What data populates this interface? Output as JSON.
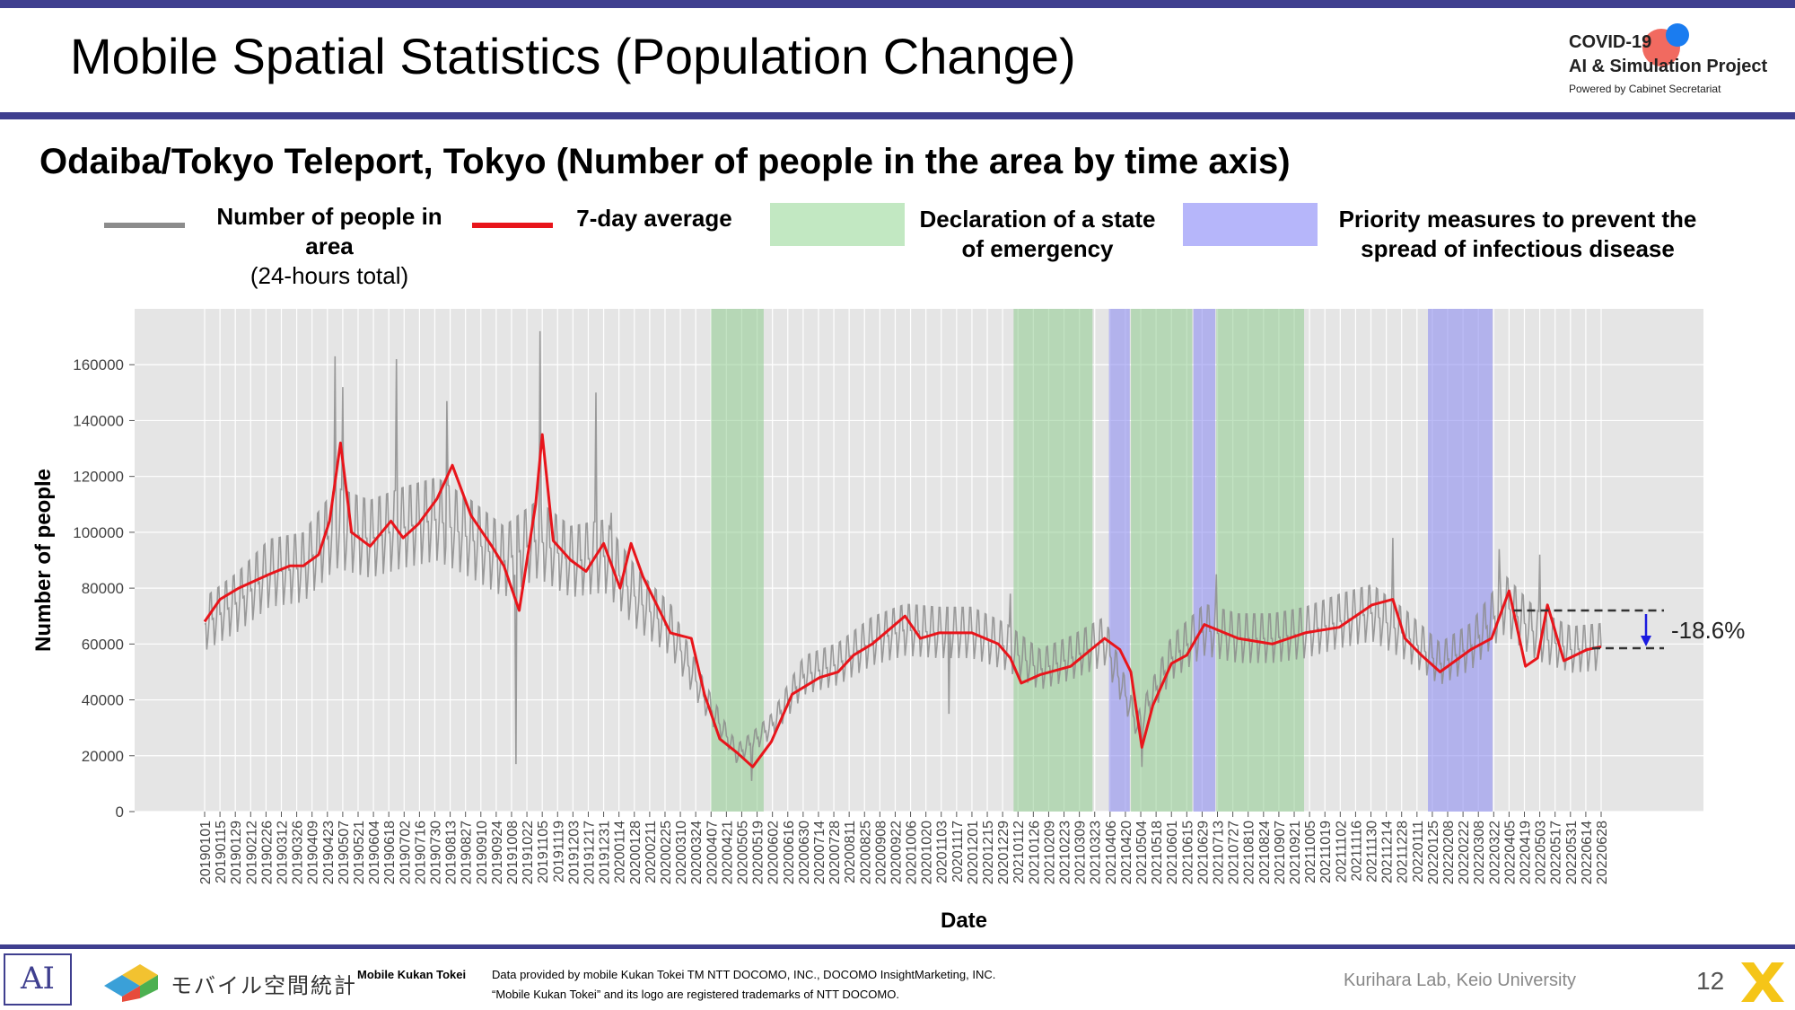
{
  "header": {
    "title": "Mobile Spatial Statistics (Population Change)",
    "logo_line1": "COVID-19",
    "logo_line2": "AI & Simulation Project",
    "logo_line3": "Powered by Cabinet Secretariat"
  },
  "subtitle": "Odaiba/Tokyo Teleport, Tokyo (Number of people in the area by time axis)",
  "legend": {
    "gray_label": "Number of people in area",
    "gray_sub": "(24-hours total)",
    "red_label": "7-day average",
    "green_label_1": "Declaration of a state",
    "green_label_2": "of emergency",
    "blue_label_1": "Priority measures to prevent the",
    "blue_label_2": "spread of infectious disease"
  },
  "colors": {
    "gray": "#8c8c8c",
    "red": "#e8151b",
    "green": "#8fcc8f",
    "blue": "#8f8ff0",
    "plot_bg": "#e5e5e5",
    "accent": "#3f3f8f"
  },
  "chart_data": {
    "type": "line",
    "xlabel": "Date",
    "ylabel": "Number of people",
    "ylim": [
      0,
      180000
    ],
    "yticks": [
      0,
      20000,
      40000,
      60000,
      80000,
      100000,
      120000,
      140000,
      160000
    ],
    "grid": true,
    "start_date": "20190101",
    "xticks": [
      "20190101",
      "20190115",
      "20190129",
      "20190212",
      "20190226",
      "20190312",
      "20190326",
      "20190409",
      "20190423",
      "20190507",
      "20190521",
      "20190604",
      "20190618",
      "20190702",
      "20190716",
      "20190730",
      "20190813",
      "20190827",
      "20190910",
      "20190924",
      "20191008",
      "20191022",
      "20191105",
      "20191119",
      "20191203",
      "20191217",
      "20191231",
      "20200114",
      "20200128",
      "20200211",
      "20200225",
      "20200310",
      "20200324",
      "20200407",
      "20200421",
      "20200505",
      "20200519",
      "20200602",
      "20200616",
      "20200630",
      "20200714",
      "20200728",
      "20200811",
      "20200825",
      "20200908",
      "20200922",
      "20201006",
      "20201020",
      "20201103",
      "20201117",
      "20201201",
      "20201215",
      "20201229",
      "20210112",
      "20210126",
      "20210209",
      "20210223",
      "20210309",
      "20210323",
      "20210406",
      "20210420",
      "20210504",
      "20210518",
      "20210601",
      "20210615",
      "20210629",
      "20210713",
      "20210727",
      "20210810",
      "20210824",
      "20210907",
      "20210921",
      "20211005",
      "20211019",
      "20211102",
      "20211116",
      "20211130",
      "20211214",
      "20211228",
      "20220111",
      "20220125",
      "20220208",
      "20220222",
      "20220308",
      "20220322",
      "20220405",
      "20220419",
      "20220503",
      "20220517",
      "20220531",
      "20220614",
      "20220628"
    ],
    "emergency_periods": [
      [
        "20200407",
        "20200525"
      ],
      [
        "20210108",
        "20210321"
      ],
      [
        "20210425",
        "20210620"
      ],
      [
        "20210712",
        "20210930"
      ]
    ],
    "priority_periods": [
      [
        "20210405",
        "20210424"
      ],
      [
        "20210621",
        "20210711"
      ],
      [
        "20220121",
        "20220321"
      ]
    ],
    "series": [
      {
        "name": "Number of people in area",
        "style": "daily",
        "points": [
          [
            "20190101",
            66000
          ],
          [
            "20190201",
            74000
          ],
          [
            "20190301",
            84000
          ],
          [
            "20190401",
            86000
          ],
          [
            "20190501",
            100000
          ],
          [
            "20190601",
            96000
          ],
          [
            "20190701",
            100000
          ],
          [
            "20190801",
            103000
          ],
          [
            "20190901",
            96000
          ],
          [
            "20191001",
            88000
          ],
          [
            "20191101",
            96000
          ],
          [
            "20191201",
            88000
          ],
          [
            "20200101",
            90000
          ],
          [
            "20200201",
            74000
          ],
          [
            "20200301",
            64000
          ],
          [
            "20200401",
            40000
          ],
          [
            "20200501",
            20000
          ],
          [
            "20200601",
            30000
          ],
          [
            "20200701",
            48000
          ],
          [
            "20200801",
            52000
          ],
          [
            "20200901",
            60000
          ],
          [
            "20201001",
            64000
          ],
          [
            "20201101",
            63000
          ],
          [
            "20201201",
            63000
          ],
          [
            "20210101",
            58000
          ],
          [
            "20210201",
            50000
          ],
          [
            "20210301",
            54000
          ],
          [
            "20210401",
            60000
          ],
          [
            "20210501",
            30000
          ],
          [
            "20210601",
            54000
          ],
          [
            "20210701",
            64000
          ],
          [
            "20210801",
            61000
          ],
          [
            "20210901",
            61000
          ],
          [
            "20211001",
            63000
          ],
          [
            "20211101",
            67000
          ],
          [
            "20211201",
            70000
          ],
          [
            "20220101",
            62000
          ],
          [
            "20220201",
            52000
          ],
          [
            "20220301",
            58000
          ],
          [
            "20220401",
            73000
          ],
          [
            "20220501",
            62000
          ],
          [
            "20220601",
            57000
          ],
          [
            "20220628",
            58000
          ]
        ],
        "spikes": [
          [
            "20190430",
            163000
          ],
          [
            "20190507",
            152000
          ],
          [
            "20190625",
            162000
          ],
          [
            "20190810",
            147000
          ],
          [
            "20191012",
            17000
          ],
          [
            "20191103",
            172000
          ],
          [
            "20191224",
            150000
          ],
          [
            "20200107",
            107000
          ],
          [
            "20200514",
            11000
          ],
          [
            "20201110",
            35000
          ],
          [
            "20210105",
            78000
          ],
          [
            "20210505",
            16000
          ],
          [
            "20210712",
            85000
          ],
          [
            "20211220",
            98000
          ],
          [
            "20220327",
            94000
          ],
          [
            "20220503",
            92000
          ]
        ]
      },
      {
        "name": "7-day average",
        "style": "smooth",
        "points": [
          [
            "20190101",
            68000
          ],
          [
            "20190115",
            76000
          ],
          [
            "20190201",
            80000
          ],
          [
            "20190301",
            85000
          ],
          [
            "20190320",
            88000
          ],
          [
            "20190401",
            88000
          ],
          [
            "20190415",
            92000
          ],
          [
            "20190425",
            104000
          ],
          [
            "20190505",
            132000
          ],
          [
            "20190515",
            100000
          ],
          [
            "20190601",
            95000
          ],
          [
            "20190620",
            104000
          ],
          [
            "20190701",
            98000
          ],
          [
            "20190715",
            103000
          ],
          [
            "20190801",
            112000
          ],
          [
            "20190815",
            124000
          ],
          [
            "20190901",
            106000
          ],
          [
            "20190920",
            95000
          ],
          [
            "20191001",
            88000
          ],
          [
            "20191015",
            72000
          ],
          [
            "20191030",
            110000
          ],
          [
            "20191105",
            135000
          ],
          [
            "20191115",
            97000
          ],
          [
            "20191201",
            90000
          ],
          [
            "20191215",
            86000
          ],
          [
            "20191231",
            96000
          ],
          [
            "20200115",
            80000
          ],
          [
            "20200125",
            96000
          ],
          [
            "20200205",
            84000
          ],
          [
            "20200301",
            64000
          ],
          [
            "20200320",
            62000
          ],
          [
            "20200401",
            42000
          ],
          [
            "20200415",
            26000
          ],
          [
            "20200501",
            21000
          ],
          [
            "20200515",
            16000
          ],
          [
            "20200601",
            25000
          ],
          [
            "20200620",
            42000
          ],
          [
            "20200715",
            48000
          ],
          [
            "20200801",
            50000
          ],
          [
            "20200815",
            56000
          ],
          [
            "20200901",
            60000
          ],
          [
            "20201001",
            70000
          ],
          [
            "20201015",
            62000
          ],
          [
            "20201101",
            64000
          ],
          [
            "20201201",
            64000
          ],
          [
            "20201225",
            60000
          ],
          [
            "20210105",
            55000
          ],
          [
            "20210115",
            46000
          ],
          [
            "20210201",
            49000
          ],
          [
            "20210301",
            52000
          ],
          [
            "20210401",
            62000
          ],
          [
            "20210415",
            58000
          ],
          [
            "20210425",
            50000
          ],
          [
            "20210505",
            23000
          ],
          [
            "20210515",
            38000
          ],
          [
            "20210601",
            53000
          ],
          [
            "20210615",
            56000
          ],
          [
            "20210701",
            67000
          ],
          [
            "20210801",
            62000
          ],
          [
            "20210901",
            60000
          ],
          [
            "20211001",
            64000
          ],
          [
            "20211101",
            66000
          ],
          [
            "20211201",
            74000
          ],
          [
            "20211220",
            76000
          ],
          [
            "20211231",
            62000
          ],
          [
            "20220115",
            56000
          ],
          [
            "20220201",
            50000
          ],
          [
            "20220301",
            58000
          ],
          [
            "20220320",
            62000
          ],
          [
            "20220405",
            79000
          ],
          [
            "20220420",
            52000
          ],
          [
            "20220501",
            55000
          ],
          [
            "20220510",
            74000
          ],
          [
            "20220525",
            54000
          ],
          [
            "20220615",
            58000
          ],
          [
            "20220628",
            59000
          ]
        ]
      }
    ],
    "annotation": {
      "label": "-18.6%",
      "from_value": 72000,
      "to_value": 58500,
      "x_start": "20220401",
      "x_end": "20220628"
    }
  },
  "footer": {
    "mk_logo_text": "モバイル空間統計",
    "mk_label": "Mobile Kukan Tokei",
    "data_line1": "Data provided by mobile Kukan Tokei TM NTT DOCOMO, INC., DOCOMO InsightMarketing, INC.",
    "data_line2": "“Mobile Kukan Tokei” and its logo are registered trademarks of NTT DOCOMO.",
    "lab": "Kurihara Lab, Keio University",
    "page": "12"
  }
}
